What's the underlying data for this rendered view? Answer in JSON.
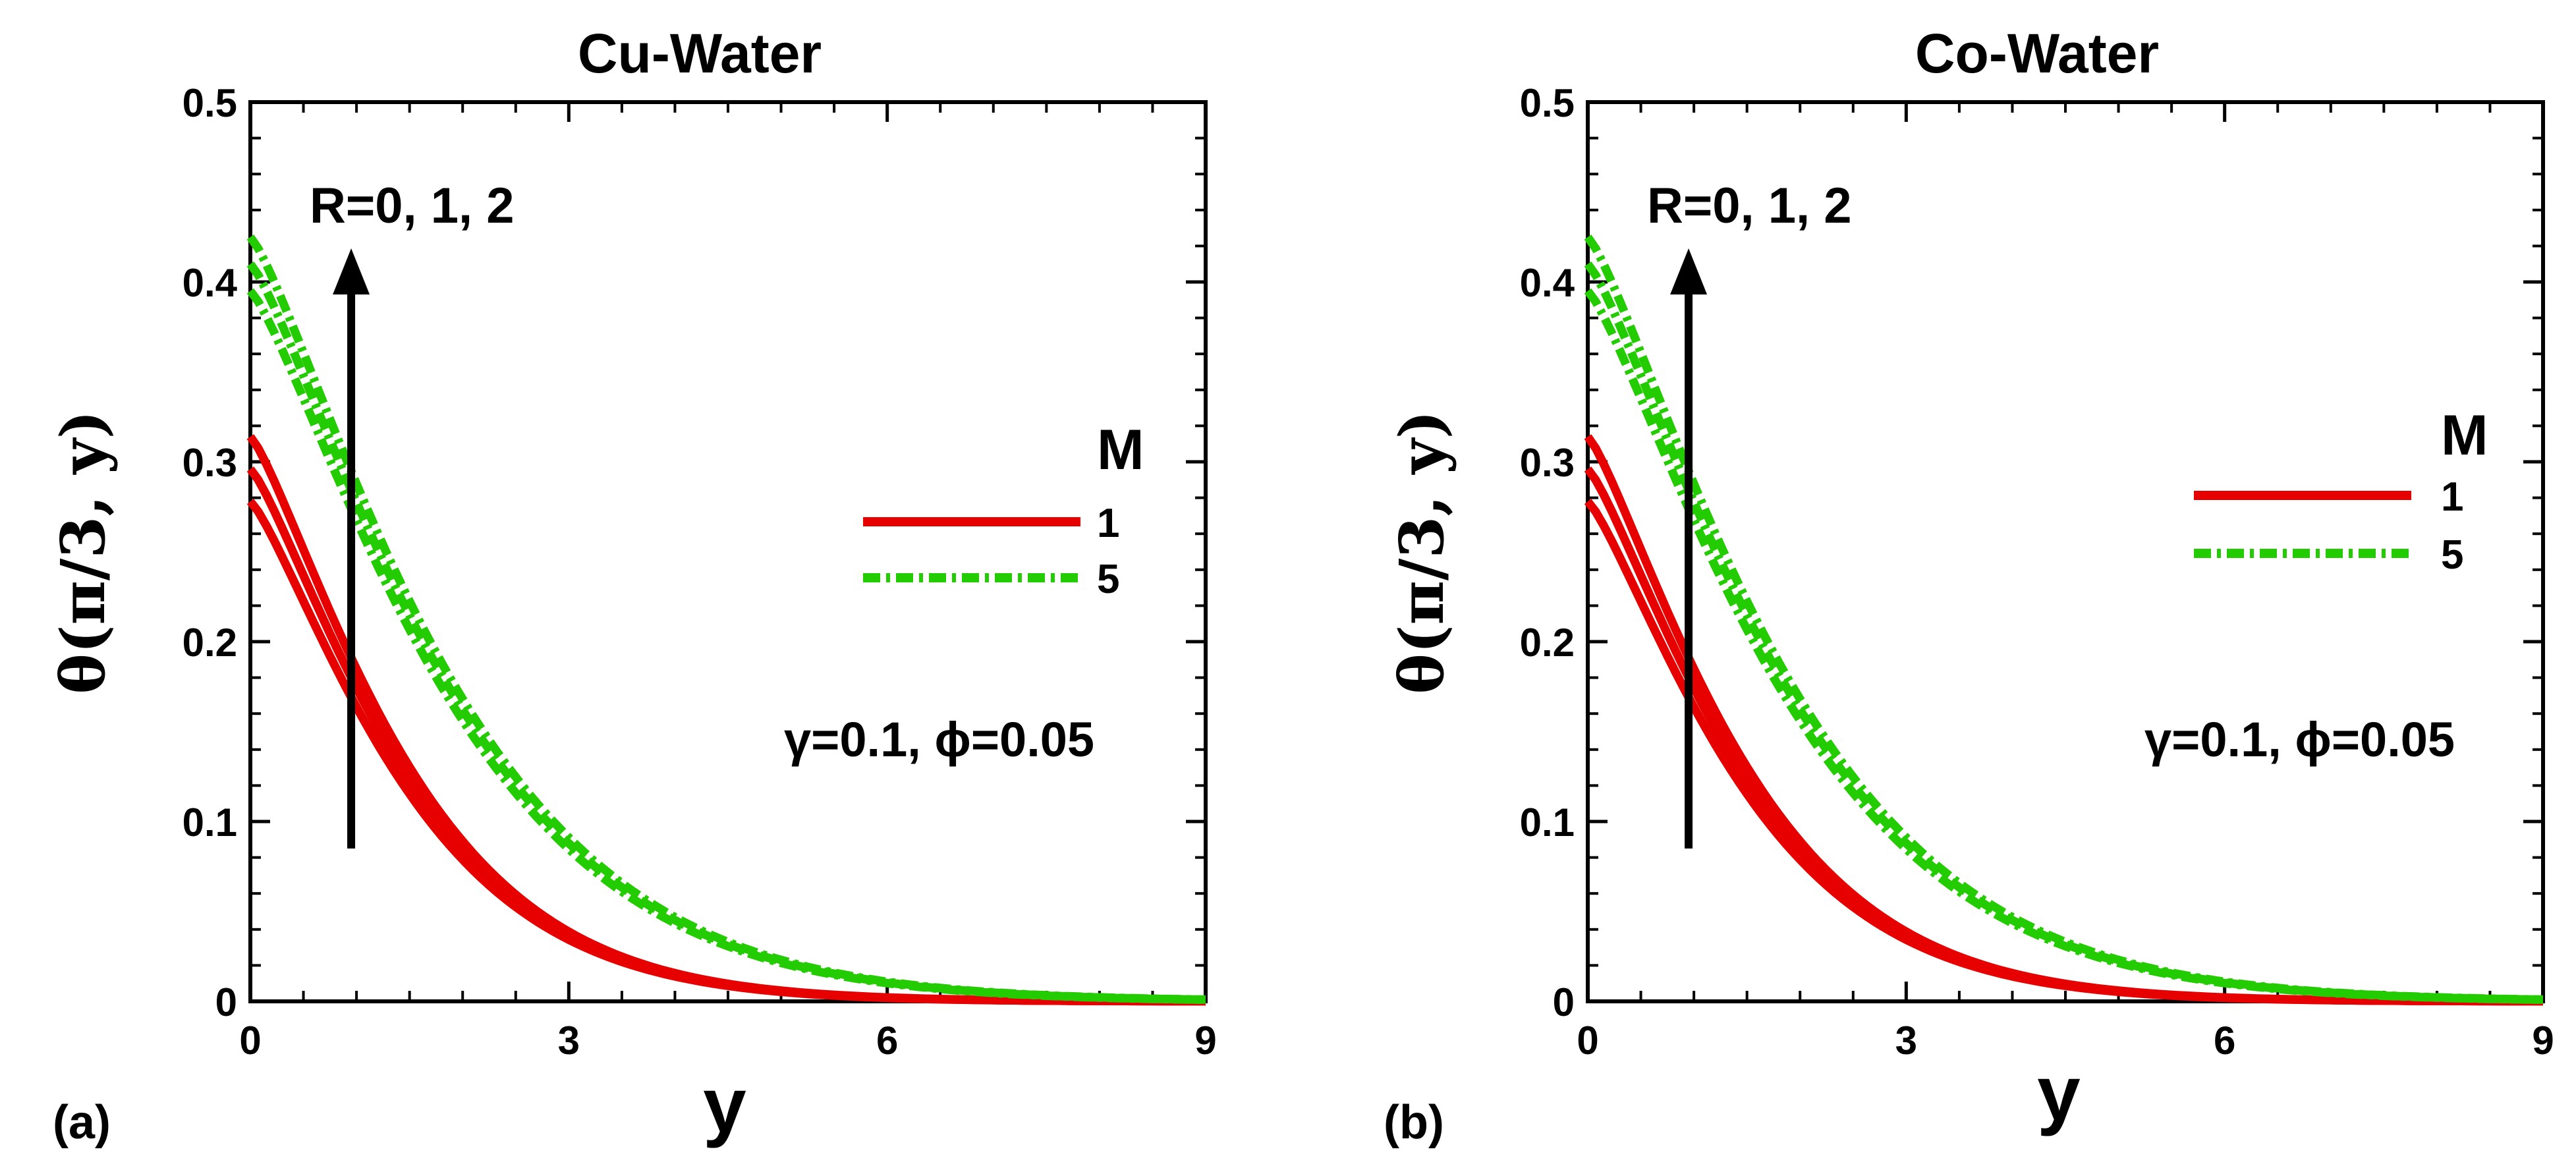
{
  "panels": [
    {
      "panel_label": "(a)",
      "chart_data": {
        "type": "line",
        "title": "Cu-Water",
        "xlabel": "y",
        "ylabel": "θ(π/3, y)",
        "xlim": [
          0,
          9
        ],
        "ylim": [
          0,
          0.5
        ],
        "xticks": [
          0,
          3,
          6,
          9
        ],
        "yticks": [
          0,
          0.1,
          0.2,
          0.3,
          0.4,
          0.5
        ],
        "legend_title": "M",
        "legend_position": "right",
        "annotations": {
          "arrow_label": "R=0, 1, 2",
          "params": "γ=0.1, ϕ=0.05"
        },
        "arrow": {
          "x": 0.95,
          "y_from": 0.085,
          "y_to": 0.415
        },
        "series": [
          {
            "name": "1",
            "color": "#e60000",
            "style": "solid",
            "curves": [
              {
                "R": 0,
                "y0": 0.278,
                "decay": 0.53
              },
              {
                "R": 1,
                "y0": 0.296,
                "decay": 0.53
              },
              {
                "R": 2,
                "y0": 0.314,
                "decay": 0.53
              }
            ]
          },
          {
            "name": "5",
            "color": "#22cc00",
            "style": "dashdot",
            "curves": [
              {
                "R": 0,
                "y0": 0.395,
                "decay": 0.39
              },
              {
                "R": 1,
                "y0": 0.41,
                "decay": 0.39
              },
              {
                "R": 2,
                "y0": 0.425,
                "decay": 0.39
              }
            ]
          }
        ]
      }
    },
    {
      "panel_label": "(b)",
      "chart_data": {
        "type": "line",
        "title": "Co-Water",
        "xlabel": "y",
        "ylabel": "θ(π/3, y)",
        "xlim": [
          0,
          9
        ],
        "ylim": [
          0,
          0.5
        ],
        "xticks": [
          0,
          3,
          6,
          9
        ],
        "yticks": [
          0,
          0.1,
          0.2,
          0.3,
          0.4,
          0.5
        ],
        "legend_title": "M",
        "legend_position": "right",
        "annotations": {
          "arrow_label": "R=0, 1, 2",
          "params": "γ=0.1, ϕ=0.05"
        },
        "arrow": {
          "x": 0.95,
          "y_from": 0.085,
          "y_to": 0.415
        },
        "series": [
          {
            "name": "1",
            "color": "#e60000",
            "style": "solid",
            "curves": [
              {
                "R": 0,
                "y0": 0.278,
                "decay": 0.53
              },
              {
                "R": 1,
                "y0": 0.296,
                "decay": 0.53
              },
              {
                "R": 2,
                "y0": 0.314,
                "decay": 0.53
              }
            ]
          },
          {
            "name": "5",
            "color": "#22cc00",
            "style": "dashdot",
            "curves": [
              {
                "R": 0,
                "y0": 0.395,
                "decay": 0.39
              },
              {
                "R": 1,
                "y0": 0.41,
                "decay": 0.39
              },
              {
                "R": 2,
                "y0": 0.425,
                "decay": 0.39
              }
            ]
          }
        ]
      }
    }
  ]
}
